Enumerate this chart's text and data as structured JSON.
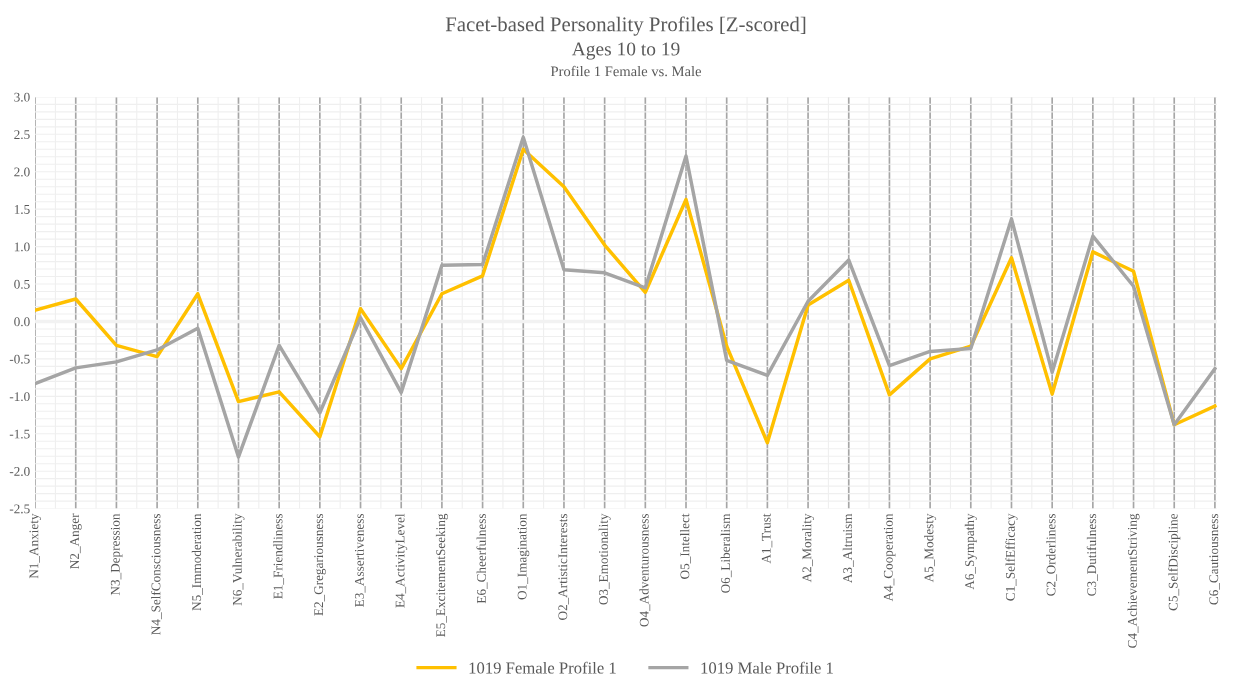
{
  "chart_data": {
    "type": "line",
    "title": "Facet-based Personality Profiles [Z-scored]",
    "subtitle": "Ages 10 to 19",
    "annotations": [
      "Profile 1 Female vs. Male"
    ],
    "categories": [
      "N1_Anxiety",
      "N2_Anger",
      "N3_Depression",
      "N4_SelfConsciousness",
      "N5_Immoderation",
      "N6_Vulnerability",
      "E1_Friendliness",
      "E2_Gregariousness",
      "E3_Assertiveness",
      "E4_ActivityLevel",
      "E5_ExcitementSeeking",
      "E6_Cheerfulness",
      "O1_Imagination",
      "O2_ArtisticInterests",
      "O3_Emotionality",
      "O4_Adventurousness",
      "O5_Intellect",
      "O6_Liberalism",
      "A1_Trust",
      "A2_Morality",
      "A3_Altruism",
      "A4_Cooperation",
      "A5_Modesty",
      "A6_Sympathy",
      "C1_SelfEfficacy",
      "C2_Orderliness",
      "C3_Dutifulness",
      "C4_AchievementStriving",
      "C5_SelfDiscipline",
      "C6_Cautiousness"
    ],
    "series": [
      {
        "name": "1019 Female Profile 1",
        "color": "#ffc000",
        "values": [
          0.15,
          0.3,
          -0.32,
          -0.47,
          0.37,
          -1.07,
          -0.94,
          -1.54,
          0.17,
          -0.63,
          0.37,
          0.61,
          2.3,
          1.8,
          1.02,
          0.39,
          1.63,
          -0.33,
          -1.62,
          0.22,
          0.55,
          -0.98,
          -0.5,
          -0.33,
          0.85,
          -0.97,
          0.93,
          0.67,
          -1.38,
          -1.13
        ]
      },
      {
        "name": "1019 Male Profile 1",
        "color": "#a5a5a5",
        "values": [
          -0.83,
          -0.62,
          -0.54,
          -0.38,
          -0.09,
          -1.81,
          -0.32,
          -1.22,
          0.05,
          -0.95,
          0.75,
          0.76,
          2.46,
          0.69,
          0.65,
          0.45,
          2.21,
          -0.52,
          -0.72,
          0.27,
          0.82,
          -0.59,
          -0.4,
          -0.36,
          1.37,
          -0.68,
          1.14,
          0.47,
          -1.38,
          -0.63
        ]
      }
    ],
    "ylim": [
      -2.5,
      3.0
    ],
    "yticks": [
      {
        "value": -2.5,
        "label": "-2.5"
      },
      {
        "value": -2.0,
        "label": "-2.0"
      },
      {
        "value": -1.5,
        "label": "-1.5"
      },
      {
        "value": -1.0,
        "label": "-1.0"
      },
      {
        "value": -0.5,
        "label": "-0.5"
      },
      {
        "value": 0.0,
        "label": "0.0"
      },
      {
        "value": 0.5,
        "label": "0.5"
      },
      {
        "value": 1.0,
        "label": "1.0"
      },
      {
        "value": 1.5,
        "label": "1.5"
      },
      {
        "value": 2.0,
        "label": "2.0"
      },
      {
        "value": 2.5,
        "label": "2.5"
      },
      {
        "value": 3.0,
        "label": "3.0"
      }
    ],
    "grid": true,
    "legend": "bottom",
    "marker": "none",
    "line_style": "solid"
  }
}
